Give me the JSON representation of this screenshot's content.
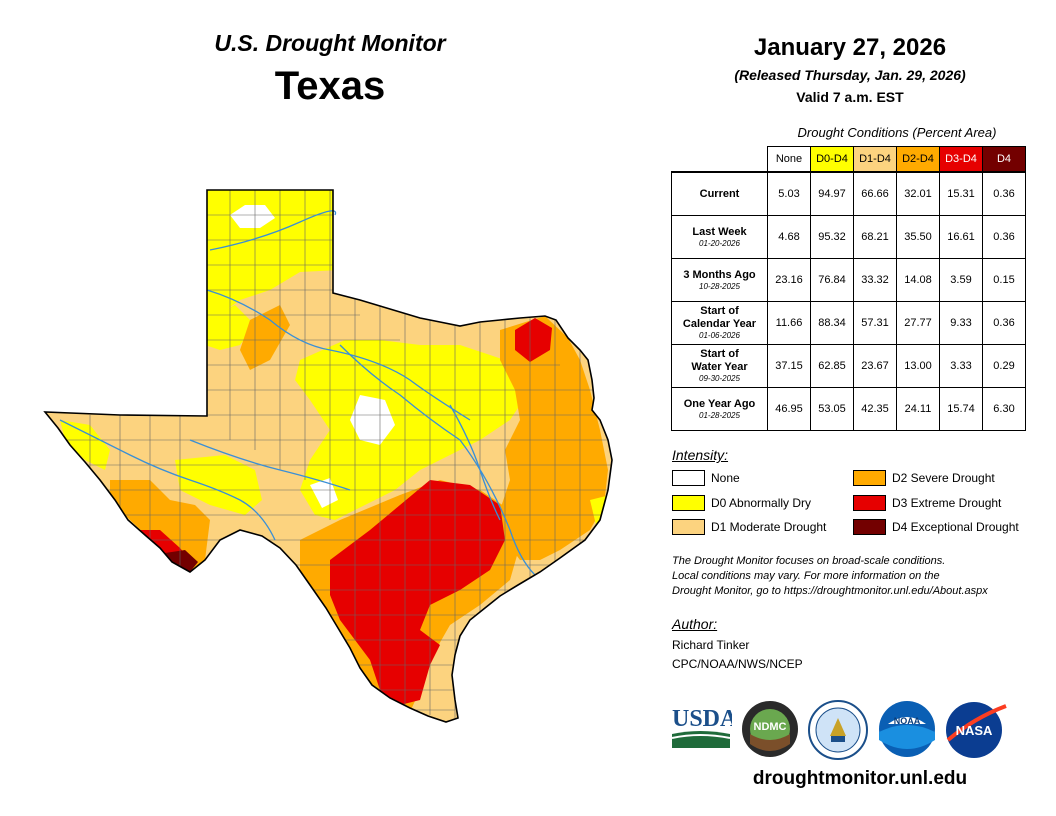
{
  "header": {
    "monitor_title": "U.S. Drought Monitor",
    "state": "Texas",
    "date": "January 27, 2026",
    "released": "(Released Thursday, Jan. 29, 2026)",
    "valid": "Valid 7 a.m. EST"
  },
  "conditions": {
    "title": "Drought Conditions (Percent Area)",
    "columns": [
      "None",
      "D0-D4",
      "D1-D4",
      "D2-D4",
      "D3-D4",
      "D4"
    ],
    "column_colors": [
      "#ffffff",
      "#ffff00",
      "#fcd37f",
      "#ffaa00",
      "#e60000",
      "#730000"
    ],
    "rows": [
      {
        "label": "Current",
        "label2": "",
        "date": "",
        "values": [
          "5.03",
          "94.97",
          "66.66",
          "32.01",
          "15.31",
          "0.36"
        ]
      },
      {
        "label": "Last Week",
        "label2": "",
        "date": "01-20-2026",
        "values": [
          "4.68",
          "95.32",
          "68.21",
          "35.50",
          "16.61",
          "0.36"
        ]
      },
      {
        "label": "3 Months Ago",
        "label2": "",
        "date": "10-28-2025",
        "values": [
          "23.16",
          "76.84",
          "33.32",
          "14.08",
          "3.59",
          "0.15"
        ]
      },
      {
        "label": "Start of",
        "label2": "Calendar Year",
        "date": "01-06-2026",
        "values": [
          "11.66",
          "88.34",
          "57.31",
          "27.77",
          "9.33",
          "0.36"
        ]
      },
      {
        "label": "Start of",
        "label2": "Water Year",
        "date": "09-30-2025",
        "values": [
          "37.15",
          "62.85",
          "23.67",
          "13.00",
          "3.33",
          "0.29"
        ]
      },
      {
        "label": "One Year Ago",
        "label2": "",
        "date": "01-28-2025",
        "values": [
          "46.95",
          "53.05",
          "42.35",
          "24.11",
          "15.74",
          "6.30"
        ]
      }
    ]
  },
  "legend": {
    "title": "Intensity:",
    "items": [
      {
        "label": "None",
        "color": "#ffffff"
      },
      {
        "label": "D0 Abnormally Dry",
        "color": "#ffff00"
      },
      {
        "label": "D1 Moderate Drought",
        "color": "#fcd37f"
      },
      {
        "label": "D2 Severe Drought",
        "color": "#ffaa00"
      },
      {
        "label": "D3 Extreme Drought",
        "color": "#e60000"
      },
      {
        "label": "D4 Exceptional Drought",
        "color": "#730000"
      }
    ]
  },
  "note": {
    "line1": "The Drought Monitor focuses on broad-scale conditions.",
    "line2": "Local conditions may vary. For more information on the",
    "line3": "Drought Monitor, go to https://droughtmonitor.unl.edu/About.aspx"
  },
  "author": {
    "title": "Author:",
    "name": "Richard Tinker",
    "org": "CPC/NOAA/NWS/NCEP"
  },
  "logos": {
    "usda": "USDA",
    "ndmc": "NDMC",
    "noaa": "NOAA",
    "nasa": "NASA"
  },
  "website": "droughtmonitor.unl.edu"
}
